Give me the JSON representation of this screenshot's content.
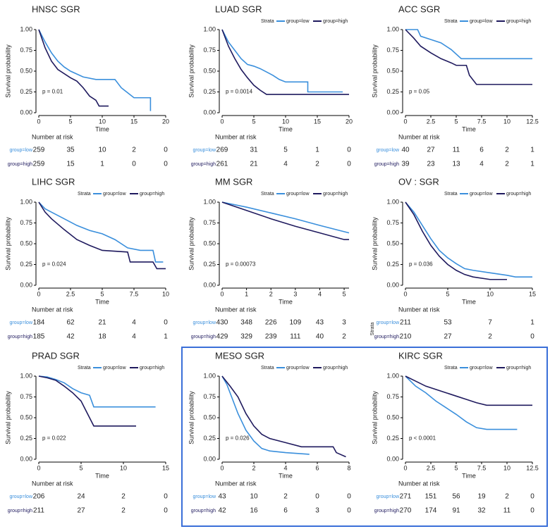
{
  "chart_data": [
    {
      "type": "km",
      "title": "HNSC SGR",
      "ylabel": "Survival probability",
      "xlabel": "Time",
      "legend": false,
      "p_text": "p = 0.01",
      "xlim": [
        0,
        20
      ],
      "xticks": [
        0,
        5,
        10,
        15,
        20
      ],
      "ylim": [
        0,
        1
      ],
      "yticks": [
        {
          "value": 0,
          "label": "0.00"
        },
        {
          "value": 0.25,
          "label": "0.25"
        },
        {
          "value": 0.5,
          "label": "0.50"
        },
        {
          "value": 0.75,
          "label": "0.75"
        },
        {
          "value": 1,
          "label": "1.00"
        }
      ],
      "risk_title": "Number at risk",
      "series": [
        {
          "name": "group=low",
          "color": "#3a8fdc",
          "x": [
            0,
            1,
            2,
            3,
            4,
            5,
            7,
            9,
            12,
            13,
            15,
            17.6,
            17.6
          ],
          "values": [
            1,
            0.85,
            0.72,
            0.62,
            0.55,
            0.5,
            0.43,
            0.4,
            0.4,
            0.3,
            0.18,
            0.18,
            0.02
          ],
          "at_risk": [
            259,
            35,
            10,
            2,
            0
          ]
        },
        {
          "name": "group=high",
          "color": "#1f1a5e",
          "x": [
            0,
            1,
            2,
            3,
            5,
            6,
            7,
            8,
            9,
            9.5,
            11
          ],
          "values": [
            1,
            0.78,
            0.62,
            0.52,
            0.42,
            0.38,
            0.3,
            0.2,
            0.15,
            0.08,
            0.08
          ],
          "at_risk": [
            259,
            15,
            1,
            0,
            0
          ]
        }
      ]
    },
    {
      "type": "km",
      "title": "LUAD SGR",
      "ylabel": "Survival probability",
      "xlabel": "Time",
      "legend": true,
      "legend_title": "Strata",
      "p_text": "p = 0.0014",
      "xlim": [
        0,
        20
      ],
      "xticks": [
        0,
        5,
        10,
        15,
        20
      ],
      "ylim": [
        0,
        1
      ],
      "yticks": [
        {
          "value": 0,
          "label": "0.00"
        },
        {
          "value": 0.25,
          "label": "0.25"
        },
        {
          "value": 0.5,
          "label": "0.50"
        },
        {
          "value": 0.75,
          "label": "0.75"
        },
        {
          "value": 1,
          "label": "1.00"
        }
      ],
      "risk_title": "Number at risk",
      "series": [
        {
          "name": "group=low",
          "color": "#3a8fdc",
          "x": [
            0,
            1,
            2,
            3,
            4,
            5,
            6,
            8,
            9,
            10,
            13.5,
            13.5,
            19
          ],
          "values": [
            1,
            0.85,
            0.75,
            0.65,
            0.58,
            0.56,
            0.53,
            0.45,
            0.4,
            0.37,
            0.37,
            0.25,
            0.25
          ],
          "at_risk": [
            269,
            31,
            5,
            1,
            0
          ]
        },
        {
          "name": "group=high",
          "color": "#1f1a5e",
          "x": [
            0,
            1,
            2,
            3,
            4,
            5,
            6,
            7,
            20
          ],
          "values": [
            1,
            0.8,
            0.65,
            0.52,
            0.42,
            0.33,
            0.27,
            0.22,
            0.22
          ],
          "at_risk": [
            261,
            21,
            4,
            2,
            0
          ]
        }
      ]
    },
    {
      "type": "km",
      "title": "ACC SGR",
      "ylabel": "Survival probability",
      "xlabel": "Time",
      "legend": true,
      "legend_title": "Strata",
      "p_text": "p = 0.05",
      "xlim": [
        0,
        12.5
      ],
      "xticks": [
        0,
        2.5,
        5,
        7.5,
        10,
        12.5
      ],
      "ylim": [
        0,
        1
      ],
      "yticks": [
        {
          "value": 0,
          "label": "0.00"
        },
        {
          "value": 0.25,
          "label": "0.25"
        },
        {
          "value": 0.5,
          "label": "0.50"
        },
        {
          "value": 0.75,
          "label": "0.75"
        },
        {
          "value": 1,
          "label": "1.00"
        }
      ],
      "risk_title": "Number at risk",
      "series": [
        {
          "name": "group=low",
          "color": "#3a8fdc",
          "x": [
            0,
            1.2,
            1.5,
            2.5,
            3.5,
            4.5,
            5.5,
            12.5
          ],
          "values": [
            1,
            1,
            0.92,
            0.88,
            0.84,
            0.76,
            0.65,
            0.65
          ],
          "at_risk": [
            40,
            27,
            11,
            6,
            2,
            1
          ]
        },
        {
          "name": "group=high",
          "color": "#1f1a5e",
          "x": [
            0,
            0.8,
            1.5,
            2.5,
            3.5,
            4.5,
            5,
            6,
            6.3,
            7,
            12.5
          ],
          "values": [
            1,
            0.9,
            0.8,
            0.72,
            0.65,
            0.6,
            0.57,
            0.57,
            0.45,
            0.34,
            0.34
          ],
          "at_risk": [
            39,
            23,
            13,
            4,
            2,
            1
          ]
        }
      ]
    },
    {
      "type": "km",
      "title": "LIHC SGR",
      "ylabel": "Survival probability",
      "xlabel": "Time",
      "legend": true,
      "legend_title": "Strata",
      "p_text": "p = 0.024",
      "xlim": [
        0,
        10
      ],
      "xticks": [
        0,
        2.5,
        5,
        7.5,
        10
      ],
      "ylim": [
        0,
        1
      ],
      "yticks": [
        {
          "value": 0,
          "label": "0.00"
        },
        {
          "value": 0.25,
          "label": "0.25"
        },
        {
          "value": 0.5,
          "label": "0.50"
        },
        {
          "value": 0.75,
          "label": "0.75"
        },
        {
          "value": 1,
          "label": "1.00"
        }
      ],
      "risk_title": "Number at risk",
      "series": [
        {
          "name": "group=low",
          "color": "#3a8fdc",
          "x": [
            0,
            0.5,
            1,
            2,
            3,
            4,
            5,
            6,
            7,
            8,
            9,
            9.2,
            9.8
          ],
          "values": [
            1,
            0.92,
            0.88,
            0.8,
            0.72,
            0.66,
            0.62,
            0.55,
            0.45,
            0.42,
            0.42,
            0.28,
            0.28
          ],
          "at_risk": [
            184,
            62,
            21,
            4,
            0
          ]
        },
        {
          "name": "group=high",
          "color": "#1f1a5e",
          "x": [
            0,
            0.5,
            1,
            2,
            3,
            4,
            5,
            7,
            7.2,
            9,
            9.3,
            10
          ],
          "values": [
            1,
            0.88,
            0.8,
            0.67,
            0.55,
            0.48,
            0.42,
            0.4,
            0.28,
            0.28,
            0.2,
            0.2
          ],
          "at_risk": [
            185,
            42,
            18,
            4,
            1
          ]
        }
      ]
    },
    {
      "type": "km",
      "title": "MM SGR",
      "ylabel": "Survival probability",
      "xlabel": "Time",
      "legend": true,
      "legend_title": "Strata",
      "p_text": "p = 0.00073",
      "xlim": [
        0,
        5.2
      ],
      "xticks": [
        0,
        1,
        2,
        3,
        4,
        5
      ],
      "ylim": [
        0,
        1
      ],
      "yticks": [
        {
          "value": 0,
          "label": "0.00"
        },
        {
          "value": 0.25,
          "label": "0.25"
        },
        {
          "value": 0.5,
          "label": "0.50"
        },
        {
          "value": 0.75,
          "label": "0.75"
        },
        {
          "value": 1,
          "label": "1.00"
        }
      ],
      "risk_title": "Number at risk",
      "series": [
        {
          "name": "group=low",
          "color": "#3a8fdc",
          "x": [
            0,
            1,
            2,
            3,
            4,
            4.8,
            5.2
          ],
          "values": [
            1,
            0.94,
            0.87,
            0.8,
            0.72,
            0.66,
            0.63
          ],
          "at_risk": [
            430,
            348,
            226,
            109,
            43,
            3
          ]
        },
        {
          "name": "group=high",
          "color": "#1f1a5e",
          "x": [
            0,
            1,
            2,
            3,
            4,
            5,
            5.2
          ],
          "values": [
            1,
            0.9,
            0.8,
            0.71,
            0.63,
            0.55,
            0.55
          ],
          "at_risk": [
            429,
            329,
            239,
            111,
            40,
            2
          ]
        }
      ]
    },
    {
      "type": "km",
      "title": "OV : SGR",
      "ylabel": "Survival probability",
      "xlabel": "Time",
      "legend": true,
      "legend_title": "Strata",
      "p_text": "p = 0.036",
      "xlim": [
        0,
        15
      ],
      "xticks": [
        0,
        5,
        10,
        15
      ],
      "ylim": [
        0,
        1
      ],
      "yticks": [
        {
          "value": 0,
          "label": "0.00"
        },
        {
          "value": 0.25,
          "label": "0.25"
        },
        {
          "value": 0.5,
          "label": "0.50"
        },
        {
          "value": 0.75,
          "label": "0.75"
        },
        {
          "value": 1,
          "label": "1.00"
        }
      ],
      "risk_title": "Number at risk",
      "risk_ylabel": "Strata",
      "series": [
        {
          "name": "group=low",
          "color": "#3a8fdc",
          "x": [
            0,
            1,
            2,
            3,
            4,
            5,
            6,
            7,
            8,
            10,
            12,
            13,
            15
          ],
          "values": [
            1,
            0.88,
            0.72,
            0.56,
            0.42,
            0.33,
            0.26,
            0.2,
            0.18,
            0.15,
            0.12,
            0.1,
            0.1
          ],
          "at_risk": [
            211,
            53,
            7,
            1
          ]
        },
        {
          "name": "group=high",
          "color": "#1f1a5e",
          "x": [
            0,
            1,
            2,
            3,
            4,
            5,
            6,
            7,
            8,
            10,
            12
          ],
          "values": [
            1,
            0.85,
            0.65,
            0.48,
            0.35,
            0.25,
            0.18,
            0.13,
            0.1,
            0.07,
            0.07
          ],
          "at_risk": [
            210,
            27,
            2,
            0
          ]
        }
      ]
    },
    {
      "type": "km",
      "title": "PRAD SGR",
      "ylabel": "Survival probability",
      "xlabel": "Time",
      "legend": true,
      "legend_title": "Strata",
      "p_text": "p = 0.022",
      "xlim": [
        0,
        15
      ],
      "xticks": [
        0,
        5,
        10,
        15
      ],
      "ylim": [
        0,
        1
      ],
      "yticks": [
        {
          "value": 0,
          "label": "0.00"
        },
        {
          "value": 0.25,
          "label": "0.25"
        },
        {
          "value": 0.5,
          "label": "0.50"
        },
        {
          "value": 0.75,
          "label": "0.75"
        },
        {
          "value": 1,
          "label": "1.00"
        }
      ],
      "risk_title": "Number at risk",
      "series": [
        {
          "name": "group=low",
          "color": "#3a8fdc",
          "x": [
            0,
            1,
            2,
            3,
            4,
            5,
            6,
            6.5,
            13.8
          ],
          "values": [
            1,
            0.99,
            0.96,
            0.92,
            0.85,
            0.8,
            0.77,
            0.63,
            0.63
          ],
          "at_risk": [
            206,
            24,
            2,
            0
          ]
        },
        {
          "name": "group=high",
          "color": "#1f1a5e",
          "x": [
            0,
            1,
            2,
            3,
            4,
            5,
            5.5,
            6,
            6.5,
            11.5
          ],
          "values": [
            1,
            0.98,
            0.95,
            0.88,
            0.8,
            0.7,
            0.6,
            0.5,
            0.4,
            0.4
          ],
          "at_risk": [
            211,
            27,
            2,
            0
          ]
        }
      ]
    },
    {
      "type": "km",
      "title": "MESO SGR",
      "ylabel": "Survival probability",
      "xlabel": "Time",
      "legend": true,
      "legend_title": "Strata",
      "p_text": "p = 0.026",
      "xlim": [
        0,
        8
      ],
      "xticks": [
        0,
        2,
        4,
        6,
        8
      ],
      "ylim": [
        0,
        1
      ],
      "yticks": [
        {
          "value": 0,
          "label": "0.00"
        },
        {
          "value": 0.25,
          "label": "0.25"
        },
        {
          "value": 0.5,
          "label": "0.50"
        },
        {
          "value": 0.75,
          "label": "0.75"
        },
        {
          "value": 1,
          "label": "1.00"
        }
      ],
      "risk_title": "Number at risk",
      "series": [
        {
          "name": "group=low",
          "color": "#3a8fdc",
          "x": [
            0,
            0.3,
            0.6,
            1,
            1.5,
            2,
            2.5,
            3,
            4,
            5.5
          ],
          "values": [
            1,
            0.9,
            0.75,
            0.55,
            0.35,
            0.22,
            0.13,
            0.1,
            0.08,
            0.06
          ],
          "at_risk": [
            43,
            10,
            2,
            0,
            0
          ]
        },
        {
          "name": "group=high",
          "color": "#1f1a5e",
          "x": [
            0,
            0.5,
            1,
            1.5,
            2,
            2.5,
            3,
            4,
            5,
            7,
            7.2,
            7.8
          ],
          "values": [
            1,
            0.88,
            0.75,
            0.55,
            0.4,
            0.3,
            0.25,
            0.2,
            0.15,
            0.15,
            0.08,
            0.03
          ],
          "at_risk": [
            42,
            16,
            6,
            3,
            0
          ]
        }
      ]
    },
    {
      "type": "km",
      "title": "KIRC SGR",
      "ylabel": "Survival probability",
      "xlabel": "Time",
      "legend": true,
      "legend_title": "Strata",
      "p_text": "p < 0.0001",
      "xlim": [
        0,
        12.5
      ],
      "xticks": [
        0,
        2.5,
        5,
        7.5,
        10,
        12.5
      ],
      "ylim": [
        0,
        1
      ],
      "yticks": [
        {
          "value": 0,
          "label": "0.00"
        },
        {
          "value": 0.25,
          "label": "0.25"
        },
        {
          "value": 0.5,
          "label": "0.50"
        },
        {
          "value": 0.75,
          "label": "0.75"
        },
        {
          "value": 1,
          "label": "1.00"
        }
      ],
      "risk_title": "Number at risk",
      "series": [
        {
          "name": "group=low",
          "color": "#3a8fdc",
          "x": [
            0,
            1,
            2,
            3,
            4,
            5,
            6,
            7,
            8,
            11
          ],
          "values": [
            1,
            0.88,
            0.8,
            0.7,
            0.62,
            0.54,
            0.45,
            0.38,
            0.36,
            0.36
          ],
          "at_risk": [
            271,
            151,
            56,
            19,
            2,
            0
          ]
        },
        {
          "name": "group=high",
          "color": "#1f1a5e",
          "x": [
            0,
            1,
            2,
            3,
            4,
            5,
            6,
            7,
            8,
            12.5
          ],
          "values": [
            1,
            0.94,
            0.88,
            0.84,
            0.8,
            0.76,
            0.72,
            0.68,
            0.65,
            0.65
          ],
          "at_risk": [
            270,
            174,
            91,
            32,
            11,
            0
          ]
        }
      ]
    }
  ]
}
